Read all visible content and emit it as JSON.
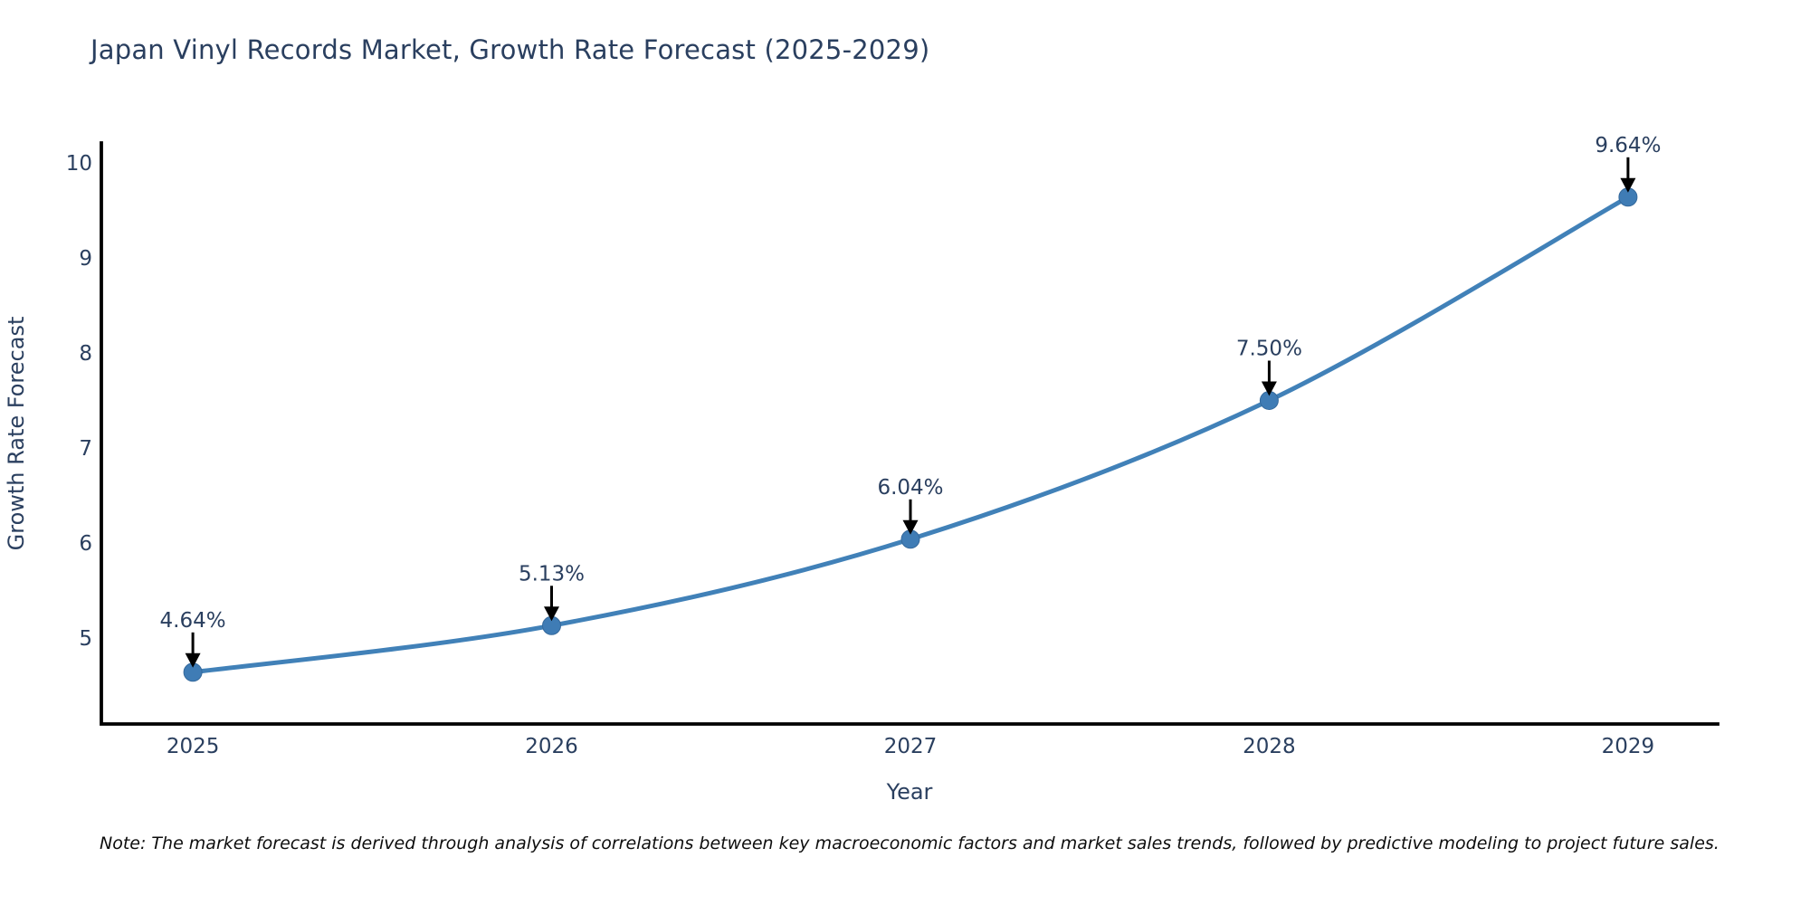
{
  "chart_data": {
    "type": "line",
    "title": "Japan Vinyl Records Market, Growth Rate Forecast (2025-2029)",
    "xlabel": "Year",
    "ylabel": "Growth Rate Forecast",
    "categories": [
      2025,
      2026,
      2027,
      2028,
      2029
    ],
    "series": [
      {
        "name": "Growth Rate Forecast",
        "values": [
          4.64,
          5.13,
          6.04,
          7.5,
          9.64
        ]
      }
    ],
    "point_labels": [
      "4.64%",
      "5.13%",
      "6.04%",
      "7.50%",
      "9.64%"
    ],
    "y_ticks": [
      5,
      6,
      7,
      8,
      9,
      10
    ],
    "x_tick_labels": [
      "2025",
      "2026",
      "2027",
      "2028",
      "2029"
    ],
    "xlim": [
      2024.745,
      2029.25
    ],
    "ylim": [
      4.095,
      10.21
    ],
    "grid": false,
    "legend": "none",
    "line_shape": "spline",
    "colors": {
      "line": "#4181b8",
      "marker": "#3f7cb5",
      "marker_edge": "#35699c",
      "axis": "#000000",
      "text": "#2a3f5f",
      "annotation_arrow": "#000000"
    }
  },
  "note": {
    "text": "Note: The market forecast is derived through analysis of correlations between key macroeconomic factors and market sales trends, followed by predictive modeling to project future sales."
  }
}
